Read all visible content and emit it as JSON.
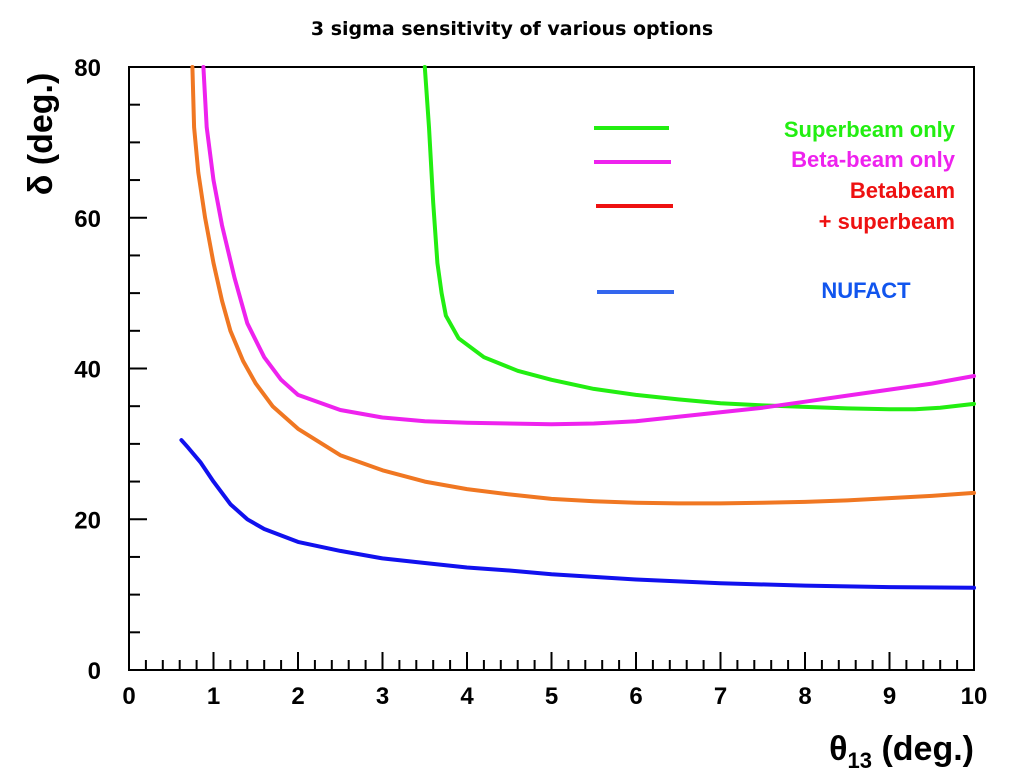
{
  "chart_data": {
    "type": "line",
    "title": "3 sigma sensitivity of various options",
    "xlabel": {
      "symbol": "θ",
      "subscript": "13",
      "unit": " (deg.)"
    },
    "ylabel": {
      "symbol": "δ",
      "unit": " (deg.)"
    },
    "xlim": [
      0,
      10
    ],
    "ylim": [
      0,
      80
    ],
    "x_ticks": [
      "0",
      "1",
      "2",
      "3",
      "4",
      "5",
      "6",
      "7",
      "8",
      "9",
      "10"
    ],
    "y_ticks": [
      "0",
      "20",
      "40",
      "60",
      "80"
    ],
    "grid": false,
    "legend_position": "top-right",
    "legend": [
      {
        "label_lines": [
          "Superbeam only"
        ],
        "line_color": "#22ee11",
        "text_color": "#22ee11"
      },
      {
        "label_lines": [
          "Beta-beam only"
        ],
        "line_color": "#ee22ee",
        "text_color": "#ee22ee"
      },
      {
        "label_lines": [
          "Betabeam",
          "+ superbeam"
        ],
        "line_color": "#ee1111",
        "text_color": "#ee1111"
      },
      {
        "label_lines": [
          "NUFACT"
        ],
        "line_color": "#3366ee",
        "text_color": "#1155ee"
      }
    ],
    "series": [
      {
        "color": "#22ee11",
        "points": [
          [
            3.5,
            80
          ],
          [
            3.55,
            72
          ],
          [
            3.6,
            62
          ],
          [
            3.65,
            54
          ],
          [
            3.7,
            50
          ],
          [
            3.75,
            47
          ],
          [
            3.9,
            44
          ],
          [
            4.2,
            41.5
          ],
          [
            4.6,
            39.7
          ],
          [
            5,
            38.5
          ],
          [
            5.5,
            37.3
          ],
          [
            6,
            36.5
          ],
          [
            6.5,
            35.9
          ],
          [
            7,
            35.4
          ],
          [
            7.5,
            35.1
          ],
          [
            8,
            34.9
          ],
          [
            8.5,
            34.7
          ],
          [
            9,
            34.6
          ],
          [
            9.3,
            34.6
          ],
          [
            9.6,
            34.8
          ],
          [
            10,
            35.3
          ]
        ]
      },
      {
        "color": "#ee22ee",
        "points": [
          [
            0.88,
            80
          ],
          [
            0.92,
            72
          ],
          [
            1,
            65
          ],
          [
            1.1,
            59
          ],
          [
            1.25,
            52
          ],
          [
            1.4,
            46
          ],
          [
            1.6,
            41.5
          ],
          [
            1.8,
            38.5
          ],
          [
            2,
            36.5
          ],
          [
            2.5,
            34.5
          ],
          [
            3,
            33.5
          ],
          [
            3.5,
            33
          ],
          [
            4,
            32.8
          ],
          [
            5,
            32.6
          ],
          [
            5.5,
            32.7
          ],
          [
            6,
            33
          ],
          [
            6.5,
            33.6
          ],
          [
            7,
            34.2
          ],
          [
            7.5,
            34.8
          ],
          [
            8,
            35.6
          ],
          [
            8.5,
            36.4
          ],
          [
            9,
            37.2
          ],
          [
            9.5,
            38
          ],
          [
            10,
            39
          ]
        ]
      },
      {
        "color": "#f07722",
        "points": [
          [
            0.75,
            80
          ],
          [
            0.77,
            72
          ],
          [
            0.82,
            66
          ],
          [
            0.9,
            60
          ],
          [
            1,
            54
          ],
          [
            1.1,
            49
          ],
          [
            1.2,
            45
          ],
          [
            1.35,
            41
          ],
          [
            1.5,
            38
          ],
          [
            1.7,
            35
          ],
          [
            2,
            32
          ],
          [
            2.5,
            28.5
          ],
          [
            3,
            26.5
          ],
          [
            3.5,
            25
          ],
          [
            4,
            24
          ],
          [
            4.5,
            23.3
          ],
          [
            5,
            22.7
          ],
          [
            5.5,
            22.4
          ],
          [
            6,
            22.2
          ],
          [
            6.5,
            22.1
          ],
          [
            7,
            22.1
          ],
          [
            7.5,
            22.2
          ],
          [
            8,
            22.3
          ],
          [
            8.5,
            22.5
          ],
          [
            9,
            22.8
          ],
          [
            9.5,
            23.1
          ],
          [
            10,
            23.5
          ]
        ]
      },
      {
        "color": "#1111ee",
        "points": [
          [
            0.62,
            30.5
          ],
          [
            0.7,
            29.5
          ],
          [
            0.85,
            27.5
          ],
          [
            1,
            25
          ],
          [
            1.2,
            22
          ],
          [
            1.4,
            20
          ],
          [
            1.6,
            18.7
          ],
          [
            2,
            17
          ],
          [
            2.5,
            15.8
          ],
          [
            3,
            14.8
          ],
          [
            3.5,
            14.2
          ],
          [
            4,
            13.6
          ],
          [
            4.5,
            13.2
          ],
          [
            5,
            12.7
          ],
          [
            6,
            12
          ],
          [
            7,
            11.5
          ],
          [
            8,
            11.2
          ],
          [
            9,
            11
          ],
          [
            10,
            10.9
          ]
        ]
      }
    ]
  }
}
